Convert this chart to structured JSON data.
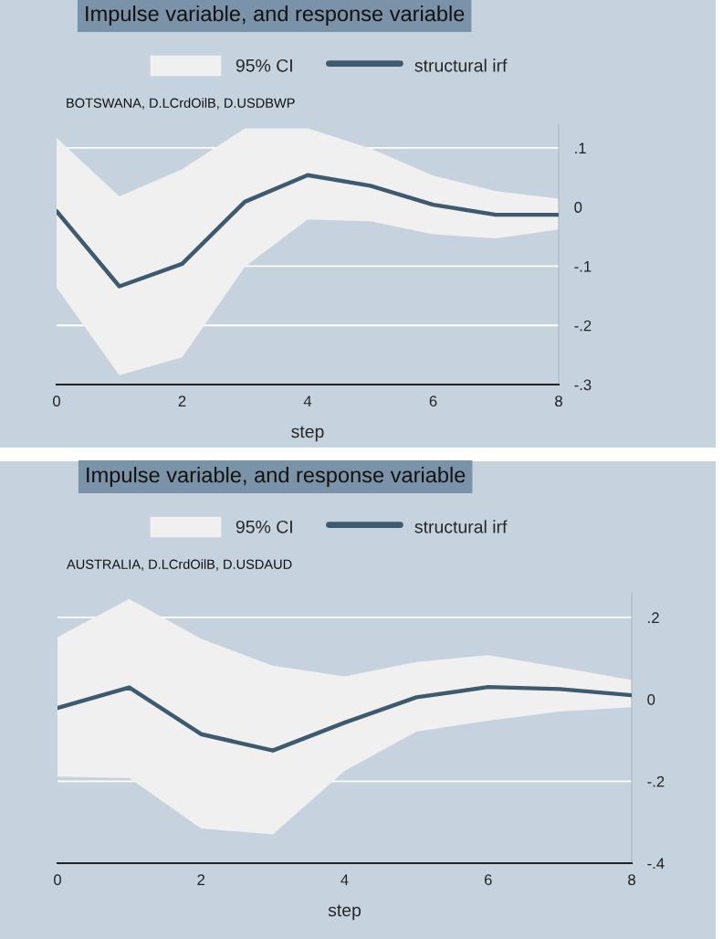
{
  "chart_data": [
    {
      "type": "line",
      "title": "Impulse variable, and response variable",
      "subtitle": "BOTSWANA, D.LCrdOilB, D.USDBWP",
      "xlabel": "step",
      "annotations": [
        "95% CI"
      ],
      "x": [
        0,
        1,
        2,
        3,
        4,
        5,
        6,
        7,
        8
      ],
      "series": [
        {
          "name": "structural irf",
          "color": "#3e5a6e",
          "values": [
            -0.007,
            -0.134,
            -0.096,
            0.009,
            0.054,
            0.036,
            0.004,
            -0.013,
            -0.013
          ],
          "lower": [
            -0.136,
            -0.284,
            -0.254,
            -0.101,
            -0.021,
            -0.024,
            -0.046,
            -0.053,
            -0.038
          ],
          "upper": [
            0.117,
            0.018,
            0.064,
            0.133,
            0.133,
            0.099,
            0.053,
            0.027,
            0.014
          ]
        }
      ],
      "xlim": [
        0,
        8
      ],
      "xticks": [
        0,
        2,
        4,
        6,
        8
      ],
      "ylim": [
        -0.3,
        0.14
      ],
      "yticks": [
        {
          "value": 0.1,
          "label": ".1"
        },
        0,
        {
          "value": -0.1,
          "label": "-.1"
        },
        {
          "value": -0.2,
          "label": "-.2"
        },
        {
          "value": -0.3,
          "label": "-.3"
        }
      ],
      "grid": "y",
      "legend": "top"
    },
    {
      "type": "line",
      "title": "Impulse variable, and response variable",
      "subtitle": "AUSTRALIA, D.LCrdOilB, D.USDAUD",
      "xlabel": "step",
      "annotations": [
        "95% CI"
      ],
      "x": [
        0,
        1,
        2,
        3,
        4,
        5,
        6,
        7,
        8
      ],
      "series": [
        {
          "name": "structural irf",
          "color": "#3e5a6e",
          "values": [
            -0.021,
            0.029,
            -0.085,
            -0.125,
            -0.057,
            0.005,
            0.03,
            0.025,
            0.01
          ],
          "lower": [
            -0.189,
            -0.192,
            -0.315,
            -0.33,
            -0.175,
            -0.079,
            -0.052,
            -0.03,
            -0.019
          ],
          "upper": [
            0.152,
            0.245,
            0.148,
            0.082,
            0.056,
            0.091,
            0.108,
            0.078,
            0.047
          ]
        }
      ],
      "xlim": [
        0,
        8
      ],
      "xticks": [
        0,
        2,
        4,
        6,
        8
      ],
      "ylim": [
        -0.4,
        0.26
      ],
      "yticks": [
        {
          "value": 0.2,
          "label": ".2"
        },
        0,
        {
          "value": -0.2,
          "label": "-.2"
        },
        {
          "value": -0.4,
          "label": "-.4"
        }
      ],
      "grid": "y",
      "legend": "top"
    }
  ]
}
